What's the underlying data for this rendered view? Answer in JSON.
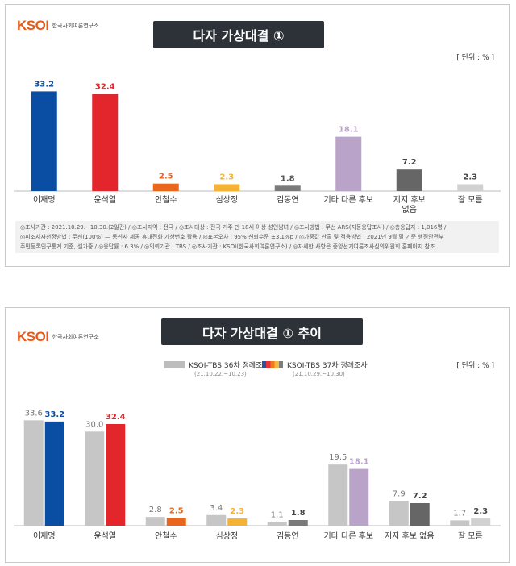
{
  "panel1": {
    "logo_mark": "KSOI",
    "logo_text": "한국사회여론연구소",
    "title": "다자 가상대결 ①",
    "unit": "[ 단위 : % ]",
    "footnote_line1": "◎조사기간 : 2021.10.29.~10.30.(2일간) / ◎조사지역 : 전국 / ◎조사대상 : 전국 거주 만 18세 이상 성인남녀 / ◎조사방법 : 무선 ARS(자동응답조사) / ◎총응답자 : 1,016명 /",
    "footnote_line2": "◎피조사자선정방법 : 무선(100%) — 통신사 제공 휴대전화 가상번호 활용 / ◎표본오차 : 95% 신뢰수준 ±3.1%p / ◎가중값 산출 및 적용방법 : 2021년 9월 말 기준 행정안전부",
    "footnote_line3": "주민등록인구통계 기준, 셀가중 / ◎응답률 : 6.3% / ◎의뢰기관 : TBS / ◎조사기관 : KSOI(한국사회여론연구소) / ◎자세한 사항은 중앙선거여론조사심의위원회 홈페이지 참조"
  },
  "panel2": {
    "logo_mark": "KSOI",
    "logo_text": "한국사회여론연구소",
    "title": "다자 가상대결 ① 추이",
    "unit": "[ 단위 : % ]",
    "legend": [
      {
        "label": "KSOI-TBS 36차 정례조사",
        "sub": "(21.10.22.~10.23)"
      },
      {
        "label": "KSOI-TBS 37차 정례조사",
        "sub": "(21.10.29.~10.30)"
      }
    ]
  },
  "colors": {
    "lee": "#0a4ea3",
    "yoon": "#e3262b",
    "ahn": "#e9661c",
    "sim": "#f5b335",
    "kim": "#7a7a7a",
    "other": "#b9a3c9",
    "none": "#666666",
    "dk": "#d1d1d1",
    "gray": "#c6c6c6"
  },
  "chart_data": [
    {
      "type": "bar",
      "categories": [
        "이재명",
        "윤석열",
        "안철수",
        "심상정",
        "김동연",
        "기타 다른 후보",
        "지지 후보 없음",
        "잘 모름"
      ],
      "values": [
        33.2,
        32.4,
        2.5,
        2.3,
        1.8,
        18.1,
        7.2,
        2.3
      ],
      "value_label_colors": [
        "#0a4ea3",
        "#e3262b",
        "#e9661c",
        "#f5b335",
        "#555555",
        "#b9a3c9",
        "#444444",
        "#444444"
      ],
      "ylim": [
        0,
        36
      ],
      "grid": false
    },
    {
      "type": "bar",
      "categories": [
        "이재명",
        "윤석열",
        "안철수",
        "심상정",
        "김동연",
        "기타 다른 후보",
        "지지 후보 없음",
        "잘 모름"
      ],
      "series": [
        {
          "name": "KSOI-TBS 36차 정례조사",
          "values": [
            33.6,
            30.0,
            2.8,
            3.4,
            1.1,
            19.5,
            7.9,
            1.7
          ]
        },
        {
          "name": "KSOI-TBS 37차 정례조사",
          "values": [
            33.2,
            32.4,
            2.5,
            2.3,
            1.8,
            18.1,
            7.2,
            2.3
          ]
        }
      ],
      "ylim": [
        0,
        36
      ],
      "grid": false,
      "legend_position": "top-center"
    }
  ]
}
